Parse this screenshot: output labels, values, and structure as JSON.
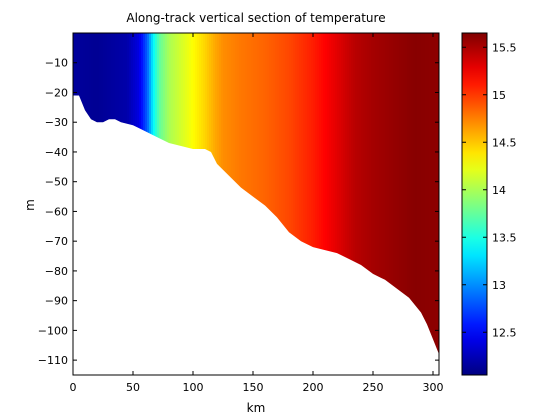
{
  "chart_data": {
    "type": "heatmap",
    "title": "Along-track vertical section of temperature",
    "xlabel": "km",
    "ylabel": "m",
    "xlim": [
      0,
      305
    ],
    "ylim": [
      -115,
      0
    ],
    "xticks": [
      0,
      50,
      100,
      150,
      200,
      250,
      300
    ],
    "yticks": [
      -10,
      -20,
      -30,
      -40,
      -50,
      -60,
      -70,
      -80,
      -90,
      -100,
      -110
    ],
    "grid": false,
    "colormap": "jet",
    "colorbar": {
      "clim": [
        12.05,
        15.65
      ],
      "ticks": [
        12.5,
        13,
        13.5,
        14,
        14.5,
        15,
        15.5
      ]
    },
    "bottom_depth_profile": {
      "x_km": [
        0,
        5,
        10,
        15,
        20,
        25,
        30,
        35,
        40,
        50,
        60,
        70,
        80,
        90,
        100,
        110,
        115,
        120,
        130,
        140,
        150,
        160,
        170,
        180,
        190,
        200,
        210,
        220,
        230,
        240,
        250,
        260,
        270,
        280,
        290,
        295,
        300,
        305
      ],
      "depth_m": [
        -21,
        -21,
        -26,
        -29,
        -30,
        -30,
        -29,
        -29,
        -30,
        -31,
        -33,
        -35,
        -37,
        -38,
        -39,
        -39,
        -40,
        -44,
        -48,
        -52,
        -55,
        -58,
        -62,
        -67,
        -70,
        -72,
        -73,
        -74,
        -76,
        -78,
        -81,
        -83,
        -86,
        -89,
        -94,
        -98,
        -103,
        -108
      ]
    },
    "surface_temperature_profile": {
      "x_km": [
        0,
        20,
        45,
        55,
        62,
        67,
        72,
        80,
        90,
        100,
        110,
        118,
        125,
        140,
        160,
        180,
        200,
        220,
        235,
        250,
        270,
        285,
        305
      ],
      "temp_c": [
        12.15,
        12.12,
        12.2,
        12.4,
        12.85,
        13.4,
        13.75,
        14.0,
        14.15,
        14.3,
        14.45,
        14.6,
        14.7,
        14.78,
        14.85,
        14.95,
        15.1,
        15.3,
        15.45,
        15.52,
        15.58,
        15.62,
        15.6
      ]
    }
  }
}
